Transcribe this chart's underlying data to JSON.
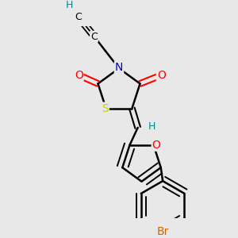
{
  "bg_color": "#e8e8e8",
  "bond_color": "#000000",
  "bond_width": 1.8,
  "atom_colors": {
    "O": "#ff0000",
    "N": "#0000cc",
    "S": "#cccc00",
    "Br": "#cc6600",
    "H": "#008888",
    "C": "#000000"
  },
  "font_size": 10,
  "fig_bg": "#e8e8e8"
}
